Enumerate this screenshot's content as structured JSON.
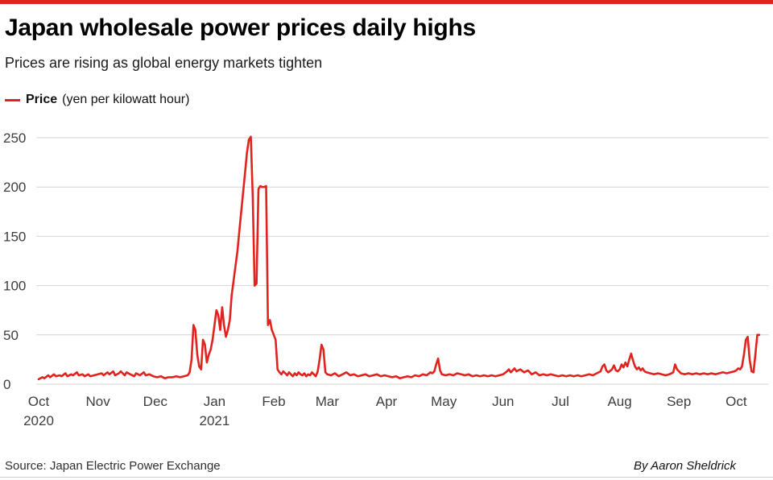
{
  "page": {
    "title": "Japan wholesale power prices daily highs",
    "subtitle": "Prices are rising as global energy markets tighten",
    "source": "Source: Japan Electric Power Exchange",
    "byline": "By Aaron Sheldrick",
    "accent_color": "#e0231f"
  },
  "legend": {
    "series_label": "Price",
    "series_units": "(yen per kilowatt hour)"
  },
  "chart_data": {
    "type": "line",
    "title": "Japan wholesale power prices daily highs",
    "series_name": "Price (yen per kilowatt hour)",
    "line_color": "#e0231f",
    "grid": true,
    "legend_position": "top-left",
    "ylabel": "Price (yen per kilowatt hour)",
    "xlabel": "",
    "ylim": [
      0,
      250
    ],
    "yticks": [
      0,
      50,
      100,
      150,
      200,
      250
    ],
    "x_unit": "days since 2020-10-01",
    "x_range": [
      0,
      380
    ],
    "xticks": [
      {
        "day": 0,
        "label": "Oct",
        "sublabel": "2020"
      },
      {
        "day": 31,
        "label": "Nov"
      },
      {
        "day": 61,
        "label": "Dec"
      },
      {
        "day": 92,
        "label": "Jan",
        "sublabel": "2021"
      },
      {
        "day": 123,
        "label": "Feb"
      },
      {
        "day": 151,
        "label": "Mar"
      },
      {
        "day": 182,
        "label": "Apr"
      },
      {
        "day": 212,
        "label": "May"
      },
      {
        "day": 243,
        "label": "Jun"
      },
      {
        "day": 273,
        "label": "Jul"
      },
      {
        "day": 304,
        "label": "Aug"
      },
      {
        "day": 335,
        "label": "Sep"
      },
      {
        "day": 365,
        "label": "Oct"
      }
    ],
    "points": [
      [
        0,
        5
      ],
      [
        2,
        7
      ],
      [
        3,
        6
      ],
      [
        5,
        9
      ],
      [
        6,
        7
      ],
      [
        8,
        10
      ],
      [
        9,
        8
      ],
      [
        11,
        9
      ],
      [
        12,
        8
      ],
      [
        14,
        11
      ],
      [
        15,
        8
      ],
      [
        17,
        10
      ],
      [
        18,
        9
      ],
      [
        20,
        12
      ],
      [
        21,
        9
      ],
      [
        23,
        10
      ],
      [
        24,
        8
      ],
      [
        26,
        10
      ],
      [
        27,
        8
      ],
      [
        29,
        9
      ],
      [
        31,
        10
      ],
      [
        33,
        11
      ],
      [
        34,
        9
      ],
      [
        36,
        12
      ],
      [
        37,
        10
      ],
      [
        39,
        13
      ],
      [
        40,
        9
      ],
      [
        42,
        11
      ],
      [
        43,
        13
      ],
      [
        45,
        9
      ],
      [
        46,
        12
      ],
      [
        48,
        10
      ],
      [
        50,
        8
      ],
      [
        51,
        11
      ],
      [
        53,
        9
      ],
      [
        55,
        12
      ],
      [
        56,
        9
      ],
      [
        58,
        10
      ],
      [
        60,
        8
      ],
      [
        62,
        7
      ],
      [
        64,
        8
      ],
      [
        66,
        6
      ],
      [
        68,
        7
      ],
      [
        70,
        7
      ],
      [
        72,
        8
      ],
      [
        74,
        7
      ],
      [
        76,
        8
      ],
      [
        78,
        9
      ],
      [
        79,
        12
      ],
      [
        80,
        25
      ],
      [
        81,
        60
      ],
      [
        82,
        55
      ],
      [
        83,
        30
      ],
      [
        84,
        18
      ],
      [
        85,
        15
      ],
      [
        86,
        45
      ],
      [
        87,
        40
      ],
      [
        88,
        22
      ],
      [
        89,
        30
      ],
      [
        90,
        35
      ],
      [
        91,
        45
      ],
      [
        92,
        60
      ],
      [
        93,
        75
      ],
      [
        94,
        70
      ],
      [
        95,
        55
      ],
      [
        96,
        78
      ],
      [
        97,
        60
      ],
      [
        98,
        48
      ],
      [
        99,
        55
      ],
      [
        100,
        65
      ],
      [
        101,
        90
      ],
      [
        102,
        105
      ],
      [
        103,
        120
      ],
      [
        104,
        135
      ],
      [
        105,
        155
      ],
      [
        106,
        175
      ],
      [
        107,
        195
      ],
      [
        108,
        215
      ],
      [
        109,
        235
      ],
      [
        110,
        248
      ],
      [
        111,
        251
      ],
      [
        112,
        190
      ],
      [
        113,
        100
      ],
      [
        114,
        102
      ],
      [
        115,
        198
      ],
      [
        116,
        201
      ],
      [
        117,
        200
      ],
      [
        118,
        200
      ],
      [
        119,
        201
      ],
      [
        120,
        60
      ],
      [
        121,
        65
      ],
      [
        122,
        55
      ],
      [
        123,
        50
      ],
      [
        124,
        45
      ],
      [
        125,
        15
      ],
      [
        126,
        12
      ],
      [
        127,
        10
      ],
      [
        128,
        13
      ],
      [
        129,
        11
      ],
      [
        130,
        9
      ],
      [
        131,
        12
      ],
      [
        132,
        10
      ],
      [
        133,
        8
      ],
      [
        134,
        11
      ],
      [
        135,
        9
      ],
      [
        136,
        12
      ],
      [
        137,
        10
      ],
      [
        138,
        9
      ],
      [
        139,
        11
      ],
      [
        140,
        8
      ],
      [
        141,
        10
      ],
      [
        142,
        9
      ],
      [
        143,
        12
      ],
      [
        144,
        10
      ],
      [
        145,
        8
      ],
      [
        146,
        13
      ],
      [
        147,
        25
      ],
      [
        148,
        40
      ],
      [
        149,
        35
      ],
      [
        150,
        12
      ],
      [
        151,
        10
      ],
      [
        153,
        9
      ],
      [
        155,
        11
      ],
      [
        157,
        8
      ],
      [
        159,
        10
      ],
      [
        161,
        12
      ],
      [
        163,
        9
      ],
      [
        165,
        10
      ],
      [
        167,
        8
      ],
      [
        169,
        9
      ],
      [
        171,
        10
      ],
      [
        173,
        8
      ],
      [
        175,
        9
      ],
      [
        177,
        10
      ],
      [
        179,
        8
      ],
      [
        181,
        9
      ],
      [
        183,
        8
      ],
      [
        185,
        7
      ],
      [
        187,
        8
      ],
      [
        189,
        6
      ],
      [
        191,
        7
      ],
      [
        193,
        8
      ],
      [
        195,
        7
      ],
      [
        197,
        9
      ],
      [
        199,
        8
      ],
      [
        201,
        10
      ],
      [
        203,
        9
      ],
      [
        205,
        12
      ],
      [
        206,
        11
      ],
      [
        207,
        13
      ],
      [
        208,
        20
      ],
      [
        209,
        26
      ],
      [
        210,
        14
      ],
      [
        211,
        10
      ],
      [
        213,
        9
      ],
      [
        215,
        10
      ],
      [
        217,
        9
      ],
      [
        219,
        11
      ],
      [
        221,
        10
      ],
      [
        223,
        9
      ],
      [
        225,
        10
      ],
      [
        227,
        8
      ],
      [
        229,
        9
      ],
      [
        231,
        8
      ],
      [
        233,
        9
      ],
      [
        235,
        8
      ],
      [
        237,
        9
      ],
      [
        239,
        8
      ],
      [
        241,
        9
      ],
      [
        243,
        10
      ],
      [
        245,
        13
      ],
      [
        246,
        15
      ],
      [
        247,
        12
      ],
      [
        248,
        14
      ],
      [
        249,
        16
      ],
      [
        250,
        13
      ],
      [
        252,
        15
      ],
      [
        254,
        12
      ],
      [
        256,
        14
      ],
      [
        258,
        10
      ],
      [
        260,
        12
      ],
      [
        262,
        9
      ],
      [
        264,
        10
      ],
      [
        266,
        9
      ],
      [
        268,
        10
      ],
      [
        270,
        9
      ],
      [
        272,
        8
      ],
      [
        274,
        9
      ],
      [
        276,
        8
      ],
      [
        278,
        9
      ],
      [
        280,
        8
      ],
      [
        282,
        9
      ],
      [
        284,
        8
      ],
      [
        286,
        9
      ],
      [
        288,
        10
      ],
      [
        290,
        9
      ],
      [
        292,
        11
      ],
      [
        294,
        13
      ],
      [
        295,
        18
      ],
      [
        296,
        20
      ],
      [
        297,
        14
      ],
      [
        298,
        12
      ],
      [
        300,
        15
      ],
      [
        301,
        19
      ],
      [
        302,
        14
      ],
      [
        303,
        13
      ],
      [
        304,
        15
      ],
      [
        305,
        20
      ],
      [
        306,
        17
      ],
      [
        307,
        22
      ],
      [
        308,
        18
      ],
      [
        309,
        25
      ],
      [
        310,
        31
      ],
      [
        311,
        24
      ],
      [
        312,
        18
      ],
      [
        313,
        15
      ],
      [
        314,
        17
      ],
      [
        315,
        14
      ],
      [
        316,
        16
      ],
      [
        317,
        13
      ],
      [
        318,
        12
      ],
      [
        320,
        11
      ],
      [
        322,
        10
      ],
      [
        324,
        11
      ],
      [
        326,
        10
      ],
      [
        328,
        9
      ],
      [
        330,
        10
      ],
      [
        332,
        12
      ],
      [
        333,
        20
      ],
      [
        334,
        15
      ],
      [
        336,
        11
      ],
      [
        338,
        10
      ],
      [
        340,
        11
      ],
      [
        342,
        10
      ],
      [
        344,
        11
      ],
      [
        346,
        10
      ],
      [
        348,
        11
      ],
      [
        350,
        10
      ],
      [
        352,
        11
      ],
      [
        354,
        10
      ],
      [
        356,
        11
      ],
      [
        358,
        12
      ],
      [
        360,
        11
      ],
      [
        362,
        12
      ],
      [
        364,
        13
      ],
      [
        365,
        14
      ],
      [
        366,
        16
      ],
      [
        367,
        15
      ],
      [
        368,
        18
      ],
      [
        369,
        30
      ],
      [
        370,
        45
      ],
      [
        371,
        48
      ],
      [
        372,
        25
      ],
      [
        373,
        13
      ],
      [
        374,
        12
      ],
      [
        375,
        30
      ],
      [
        376,
        50
      ],
      [
        377,
        50
      ]
    ]
  }
}
